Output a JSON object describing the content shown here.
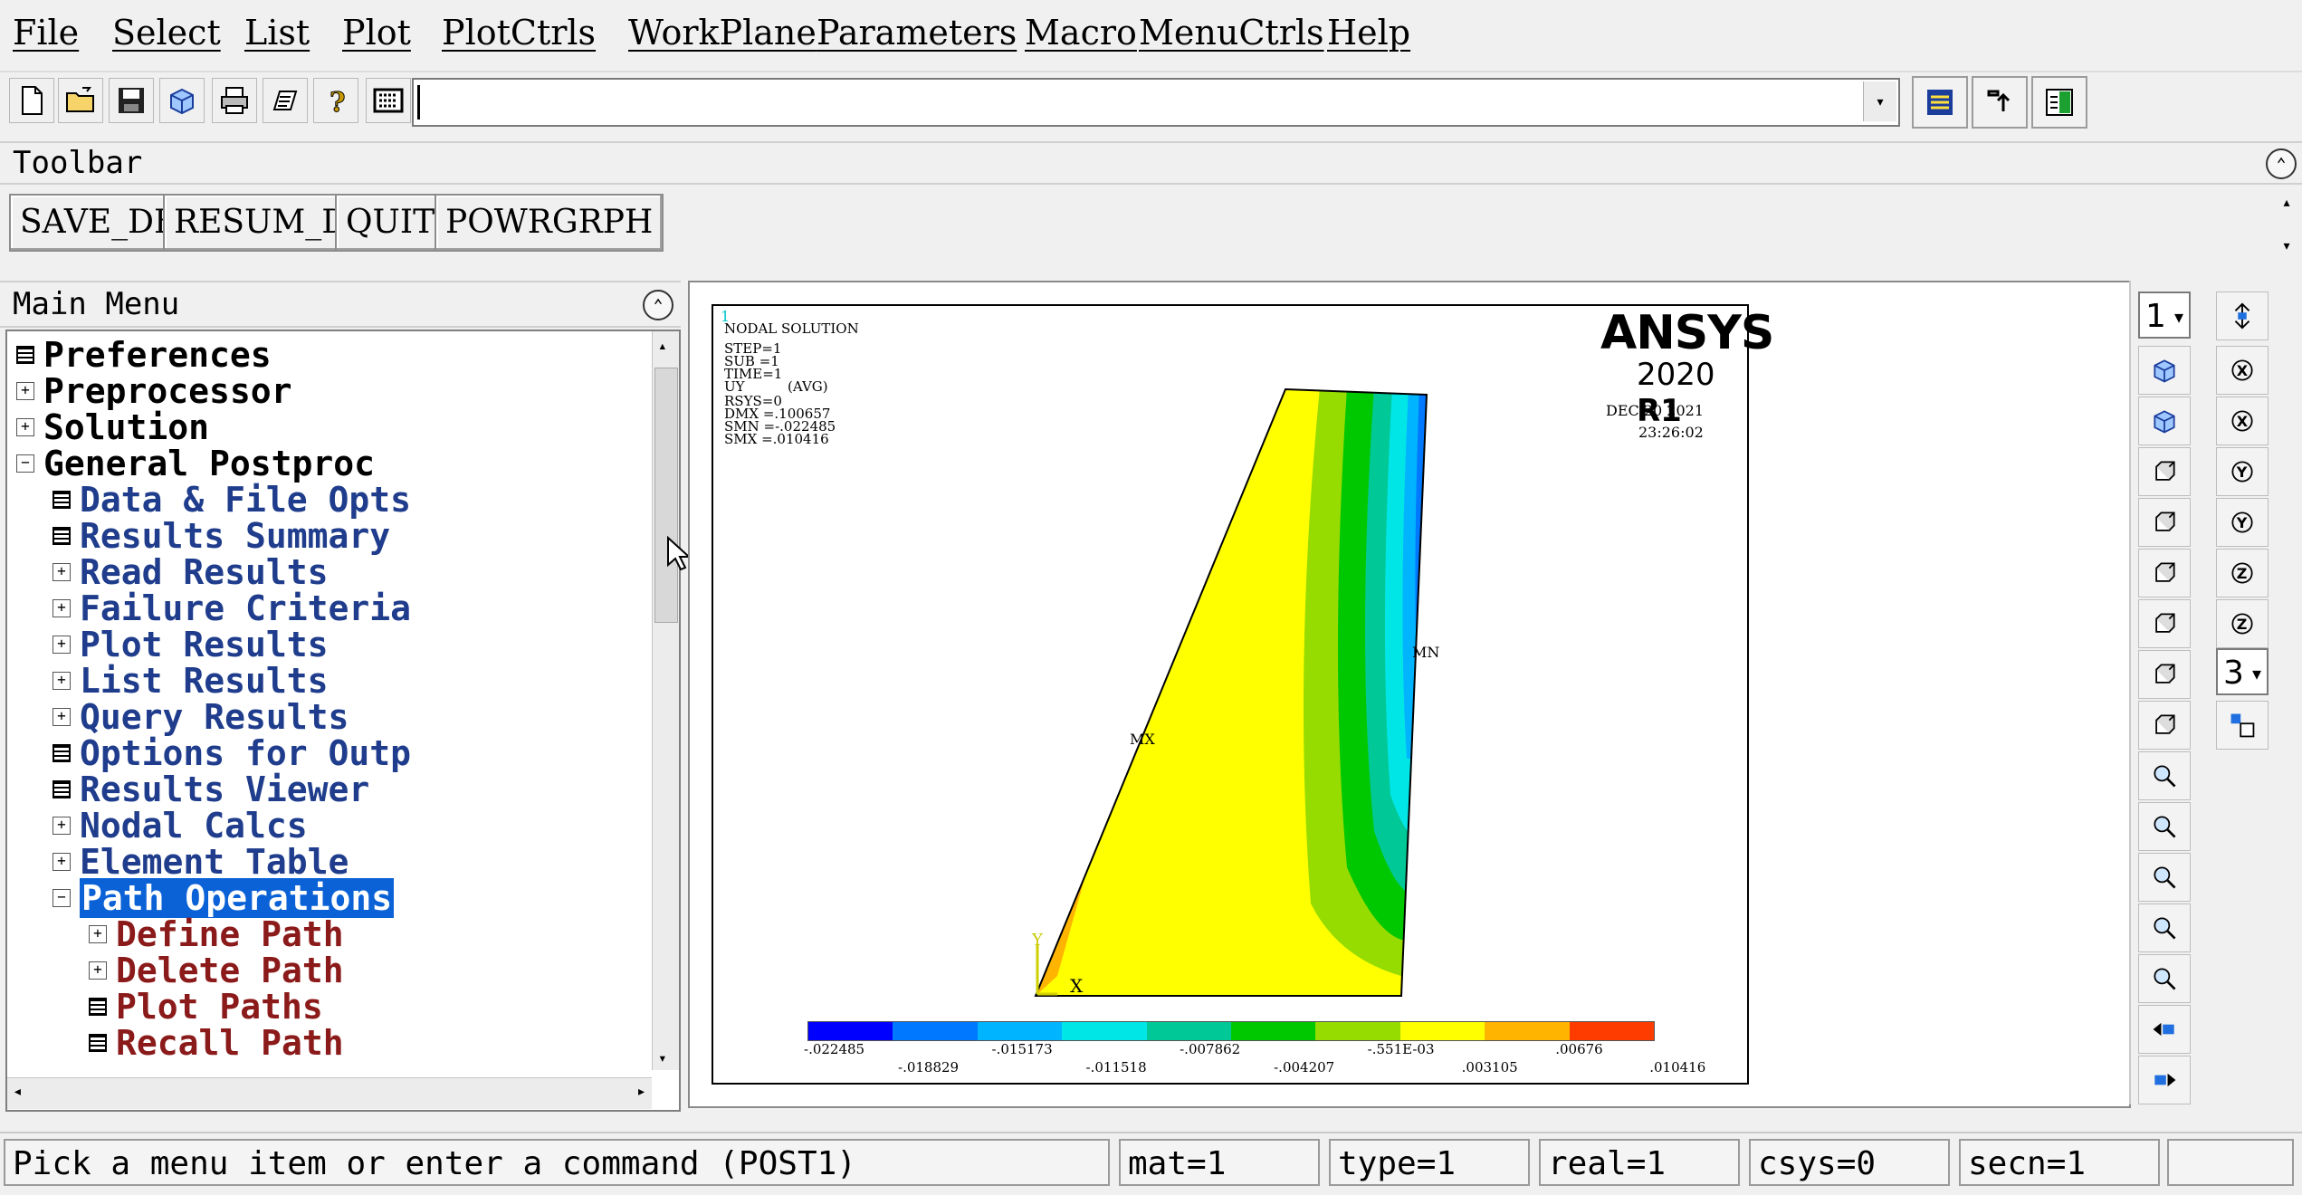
{
  "menubar": {
    "items": [
      "File",
      "Select",
      "List",
      "Plot",
      "PlotCtrls",
      "WorkPlane",
      "Parameters",
      "Macro",
      "MenuCtrls",
      "Help"
    ]
  },
  "toolbar": {
    "label": "Toolbar",
    "buttons": [
      "SAVE_DB",
      "RESUM_DB",
      "QUIT",
      "POWRGRPH"
    ],
    "command_value": ""
  },
  "main_menu": {
    "title": "Main Menu",
    "items": [
      {
        "label": "Preferences",
        "level": 0,
        "marker": "doc"
      },
      {
        "label": "Preprocessor",
        "level": 0,
        "marker": "plus"
      },
      {
        "label": "Solution",
        "level": 0,
        "marker": "plus"
      },
      {
        "label": "General Postproc",
        "level": 0,
        "marker": "minus"
      },
      {
        "label": "Data & File Opts",
        "level": 1,
        "marker": "doc"
      },
      {
        "label": "Results Summary",
        "level": 1,
        "marker": "doc"
      },
      {
        "label": "Read Results",
        "level": 1,
        "marker": "plus"
      },
      {
        "label": "Failure Criteria",
        "level": 1,
        "marker": "plus"
      },
      {
        "label": "Plot Results",
        "level": 1,
        "marker": "plus"
      },
      {
        "label": "List Results",
        "level": 1,
        "marker": "plus"
      },
      {
        "label": "Query Results",
        "level": 1,
        "marker": "plus"
      },
      {
        "label": "Options for Outp",
        "level": 1,
        "marker": "doc"
      },
      {
        "label": "Results Viewer",
        "level": 1,
        "marker": "doc"
      },
      {
        "label": "Nodal Calcs",
        "level": 1,
        "marker": "plus"
      },
      {
        "label": "Element Table",
        "level": 1,
        "marker": "plus"
      },
      {
        "label": "Path Operations",
        "level": 1,
        "marker": "minus",
        "selected": true
      },
      {
        "label": "Define Path",
        "level": 2,
        "marker": "plus"
      },
      {
        "label": "Delete Path",
        "level": 2,
        "marker": "plus"
      },
      {
        "label": "Plot Paths",
        "level": 2,
        "marker": "doc"
      },
      {
        "label": "Recall Path",
        "level": 2,
        "marker": "doc"
      }
    ]
  },
  "graphics": {
    "window_number": "1",
    "logo": "ANSYS",
    "version": "2020",
    "release": "R1",
    "date": "DEC 20 2021",
    "time": "23:26:02",
    "info_lines": [
      "NODAL SOLUTION",
      "STEP=1",
      "SUB =1",
      "TIME=1",
      "UY",
      "(AVG)",
      "RSYS=0",
      "DMX =.100657",
      "SMN =-.022485",
      "SMX =.010416"
    ],
    "mx_label": "MX",
    "mn_label": "MN",
    "axis_y": "Y",
    "axis_x": "X",
    "legend_values_top": [
      "-.022485",
      "-.015173",
      "-.007862",
      "-.551E-03",
      ".00676"
    ],
    "legend_values_bottom": [
      "-.018829",
      "-.011518",
      "-.004207",
      ".003105",
      ".010416"
    ],
    "legend_colors": [
      "#0000ff",
      "#0078ff",
      "#00b4ff",
      "#00e6e6",
      "#00c896",
      "#00c800",
      "#96dc00",
      "#ffff00",
      "#ffb400",
      "#ff3c00"
    ]
  },
  "right_panel": {
    "window_select": "1",
    "angle_select": "3"
  },
  "status": {
    "prompt": "Pick a menu item or enter a command (POST1)",
    "mat": "mat=1",
    "type": "type=1",
    "real": "real=1",
    "csys": "csys=0",
    "secn": "secn=1"
  }
}
